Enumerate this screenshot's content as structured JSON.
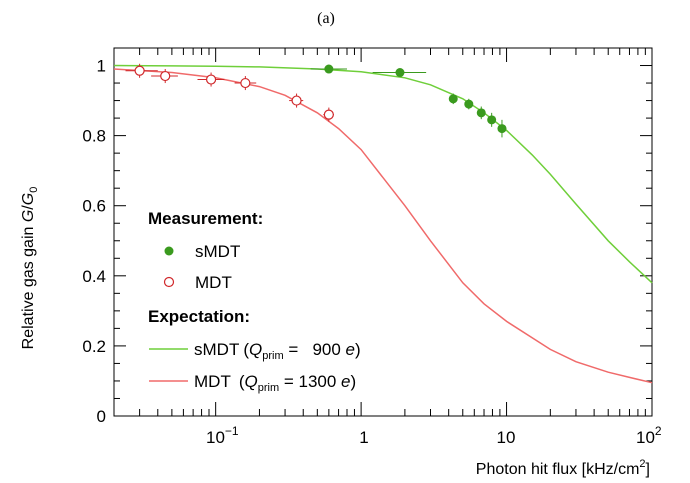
{
  "panel_label": "(a)",
  "axes": {
    "xlabel_main": "Photon hit flux [kHz/cm",
    "xlabel_sup": "2",
    "xlabel_end": "]",
    "ylabel_main": "Relative gas gain ",
    "ylabel_g": "G",
    "ylabel_slash": "/",
    "ylabel_g0": "G",
    "ylabel_sub": "0"
  },
  "x_tick_labels": {
    "t01_base": "10",
    "t01_exp": "−1",
    "t1": "1",
    "t10": "10",
    "t100_base": "10",
    "t100_exp": "2"
  },
  "legend": {
    "measurement_header": "Measurement:",
    "smdt_points_label": "sMDT",
    "mdt_points_label": "MDT",
    "expectation_header": "Expectation:",
    "smdt_curve_name": "sMDT",
    "mdt_curve_name": "MDT",
    "open_paren": "(",
    "q": "Q",
    "prim": "prim",
    "smdt_eq": " =   900 ",
    "mdt_eq": " = 1300 ",
    "e": "e",
    "close_paren": ")"
  },
  "colors": {
    "smdt": "#3a9a1e",
    "smdt_curve": "#6fcf3a",
    "mdt": "#d0282b",
    "mdt_curve": "#f06a6a"
  },
  "chart_data": {
    "type": "scatter",
    "xscale": "log",
    "xlim": [
      0.02,
      100
    ],
    "ylim": [
      0,
      1.05
    ],
    "x_ticks": [
      0.1,
      1,
      10,
      100
    ],
    "y_ticks": [
      0,
      0.2,
      0.4,
      0.6,
      0.8,
      1
    ],
    "y_tick_labels": [
      "0",
      "0.2",
      "0.4",
      "0.6",
      "0.8",
      "1"
    ],
    "grid": false,
    "legend_position": "bottom-left",
    "series": [
      {
        "name": "sMDT",
        "kind": "points",
        "marker": "filled-circle",
        "points": [
          {
            "x": 0.6,
            "y": 0.99,
            "xerr": [
              0.45,
              0.8
            ]
          },
          {
            "x": 1.85,
            "y": 0.98,
            "xerr": [
              1.2,
              2.8
            ]
          },
          {
            "x": 4.3,
            "y": 0.905,
            "yerr": 0.015
          },
          {
            "x": 5.5,
            "y": 0.89,
            "yerr": 0.015
          },
          {
            "x": 6.7,
            "y": 0.865,
            "yerr": 0.018
          },
          {
            "x": 7.9,
            "y": 0.845,
            "yerr": 0.02
          },
          {
            "x": 9.3,
            "y": 0.82,
            "yerr": 0.025
          }
        ]
      },
      {
        "name": "MDT",
        "kind": "points",
        "marker": "open-circle",
        "points": [
          {
            "x": 0.03,
            "y": 0.985,
            "xerr": [
              0.024,
              0.04
            ],
            "yerr": 0.02
          },
          {
            "x": 0.045,
            "y": 0.97,
            "xerr": [
              0.036,
              0.055
            ],
            "yerr": 0.02
          },
          {
            "x": 0.093,
            "y": 0.96,
            "xerr": [
              0.075,
              0.115
            ],
            "yerr": 0.02
          },
          {
            "x": 0.16,
            "y": 0.95,
            "xerr": [
              0.135,
              0.19
            ],
            "yerr": 0.02
          },
          {
            "x": 0.36,
            "y": 0.9,
            "xerr": [
              0.32,
              0.4
            ],
            "yerr": 0.02
          },
          {
            "x": 0.6,
            "y": 0.86,
            "xerr": [
              0.55,
              0.65
            ],
            "yerr": 0.02
          }
        ]
      },
      {
        "name": "sMDT (Q_prim = 900 e)",
        "kind": "line",
        "x": [
          0.02,
          0.05,
          0.1,
          0.2,
          0.5,
          1,
          2,
          3,
          5,
          7,
          10,
          15,
          20,
          30,
          50,
          70,
          100
        ],
        "y": [
          1.0,
          0.999,
          0.998,
          0.996,
          0.99,
          0.982,
          0.965,
          0.945,
          0.905,
          0.865,
          0.815,
          0.745,
          0.69,
          0.605,
          0.5,
          0.44,
          0.38
        ]
      },
      {
        "name": "MDT (Q_prim = 1300 e)",
        "kind": "line",
        "x": [
          0.02,
          0.05,
          0.1,
          0.2,
          0.3,
          0.5,
          0.7,
          1,
          2,
          3,
          5,
          7,
          10,
          20,
          30,
          50,
          70,
          100
        ],
        "y": [
          0.99,
          0.98,
          0.965,
          0.94,
          0.915,
          0.865,
          0.82,
          0.76,
          0.6,
          0.5,
          0.38,
          0.32,
          0.27,
          0.19,
          0.155,
          0.125,
          0.11,
          0.095
        ]
      }
    ]
  }
}
